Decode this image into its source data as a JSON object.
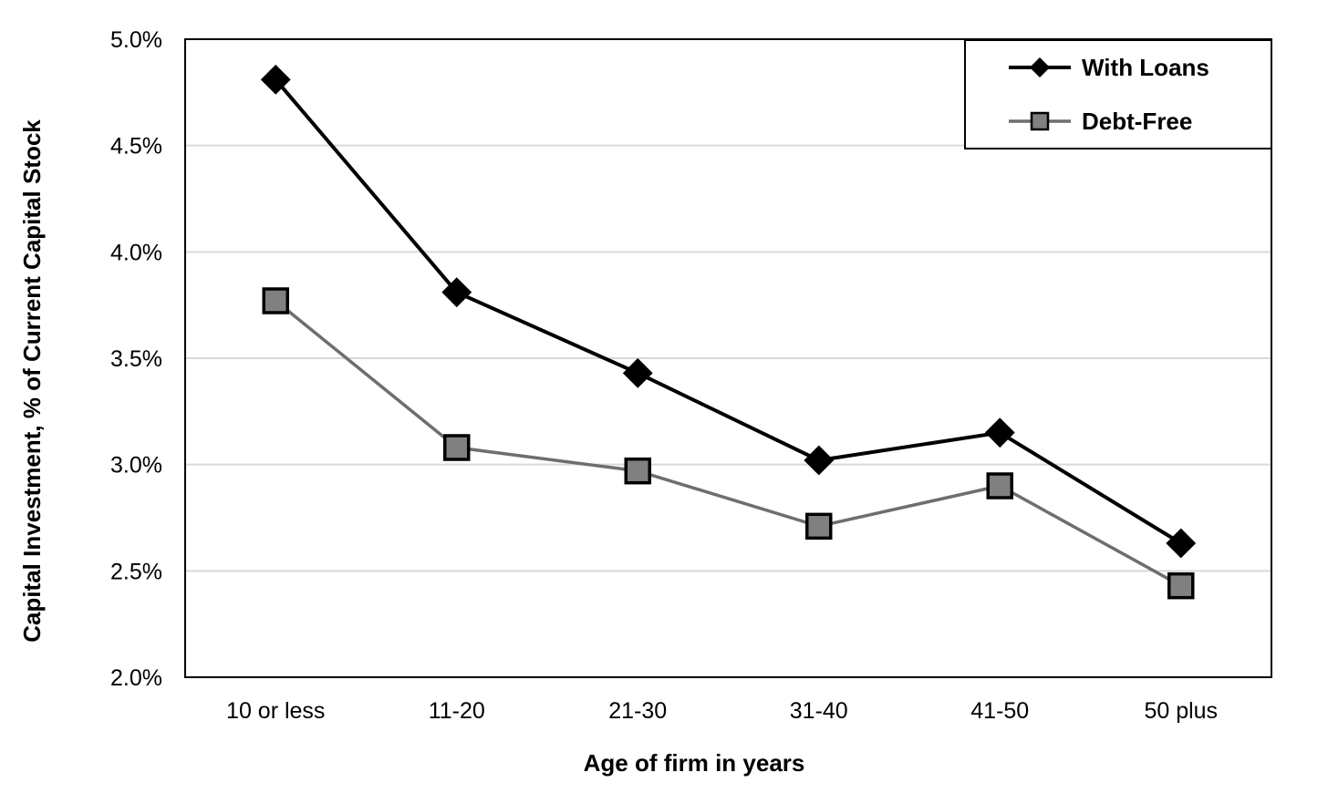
{
  "chart_data": {
    "type": "line",
    "title": "",
    "xlabel": "Age of firm in years",
    "ylabel": "Capital Investment, % of Current Capital Stock",
    "categories": [
      "10 or less",
      "11-20",
      "21-30",
      "31-40",
      "41-50",
      "50 plus"
    ],
    "ylim": [
      2.0,
      5.0
    ],
    "yticks": [
      "2.0%",
      "2.5%",
      "3.0%",
      "3.5%",
      "4.0%",
      "4.5%",
      "5.0%"
    ],
    "ytick_values": [
      2.0,
      2.5,
      3.0,
      3.5,
      4.0,
      4.5,
      5.0
    ],
    "grid": "horizontal",
    "legend_position": "top-right",
    "series": [
      {
        "name": "With Loans",
        "marker": "diamond",
        "line_color": "#000000",
        "marker_fill": "#000000",
        "values": [
          4.81,
          3.81,
          3.43,
          3.02,
          3.15,
          2.63
        ]
      },
      {
        "name": "Debt-Free",
        "marker": "square",
        "line_color": "#6e6e6e",
        "marker_fill": "#808080",
        "values": [
          3.77,
          3.08,
          2.97,
          2.71,
          2.9,
          2.43
        ]
      }
    ]
  }
}
